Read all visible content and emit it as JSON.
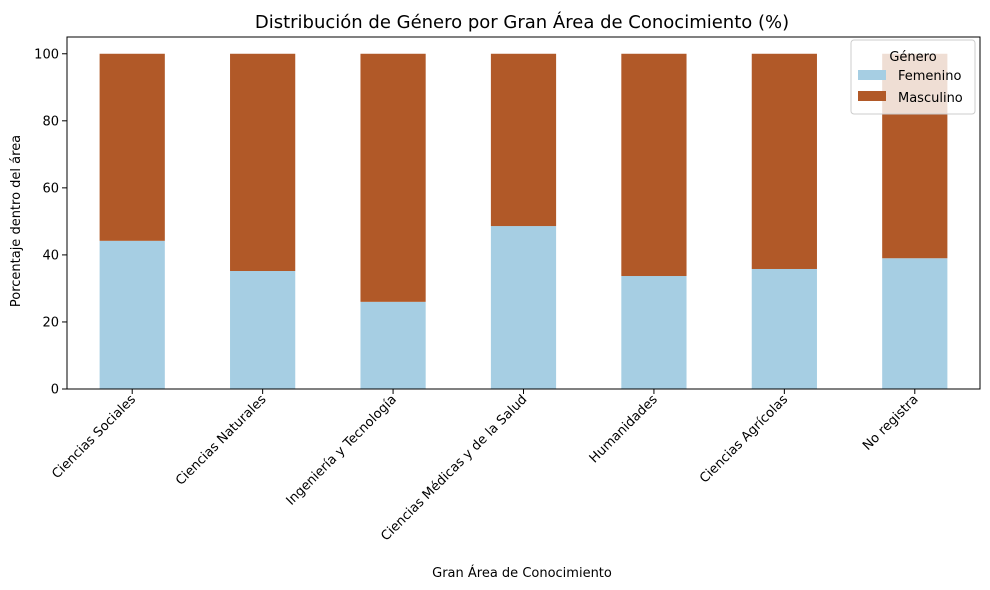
{
  "chart_data": {
    "type": "bar",
    "stacked": true,
    "title": "Distribución de Género por Gran Área de Conocimiento (%)",
    "xlabel": "Gran Área de Conocimiento",
    "ylabel": "Porcentaje dentro del área",
    "ylim": [
      0,
      105
    ],
    "yticks": [
      "0",
      "20",
      "40",
      "60",
      "80",
      "100"
    ],
    "grid": false,
    "categories": [
      "Ciencias Sociales",
      "Ciencias Naturales",
      "Ingeniería y Tecnología",
      "Ciencias Médicas y de la Salud",
      "Humanidades",
      "Ciencias Agrícolas",
      "No registra"
    ],
    "series": [
      {
        "name": "Femenino",
        "color": "#a6cee3",
        "values": [
          44.2,
          35.2,
          26.0,
          48.6,
          33.7,
          35.8,
          39.0
        ]
      },
      {
        "name": "Masculino",
        "color": "#b15928",
        "values": [
          55.8,
          64.8,
          74.0,
          51.4,
          66.3,
          64.2,
          61.0
        ]
      }
    ],
    "legend": {
      "title": "Género",
      "placement": "top-right"
    }
  }
}
